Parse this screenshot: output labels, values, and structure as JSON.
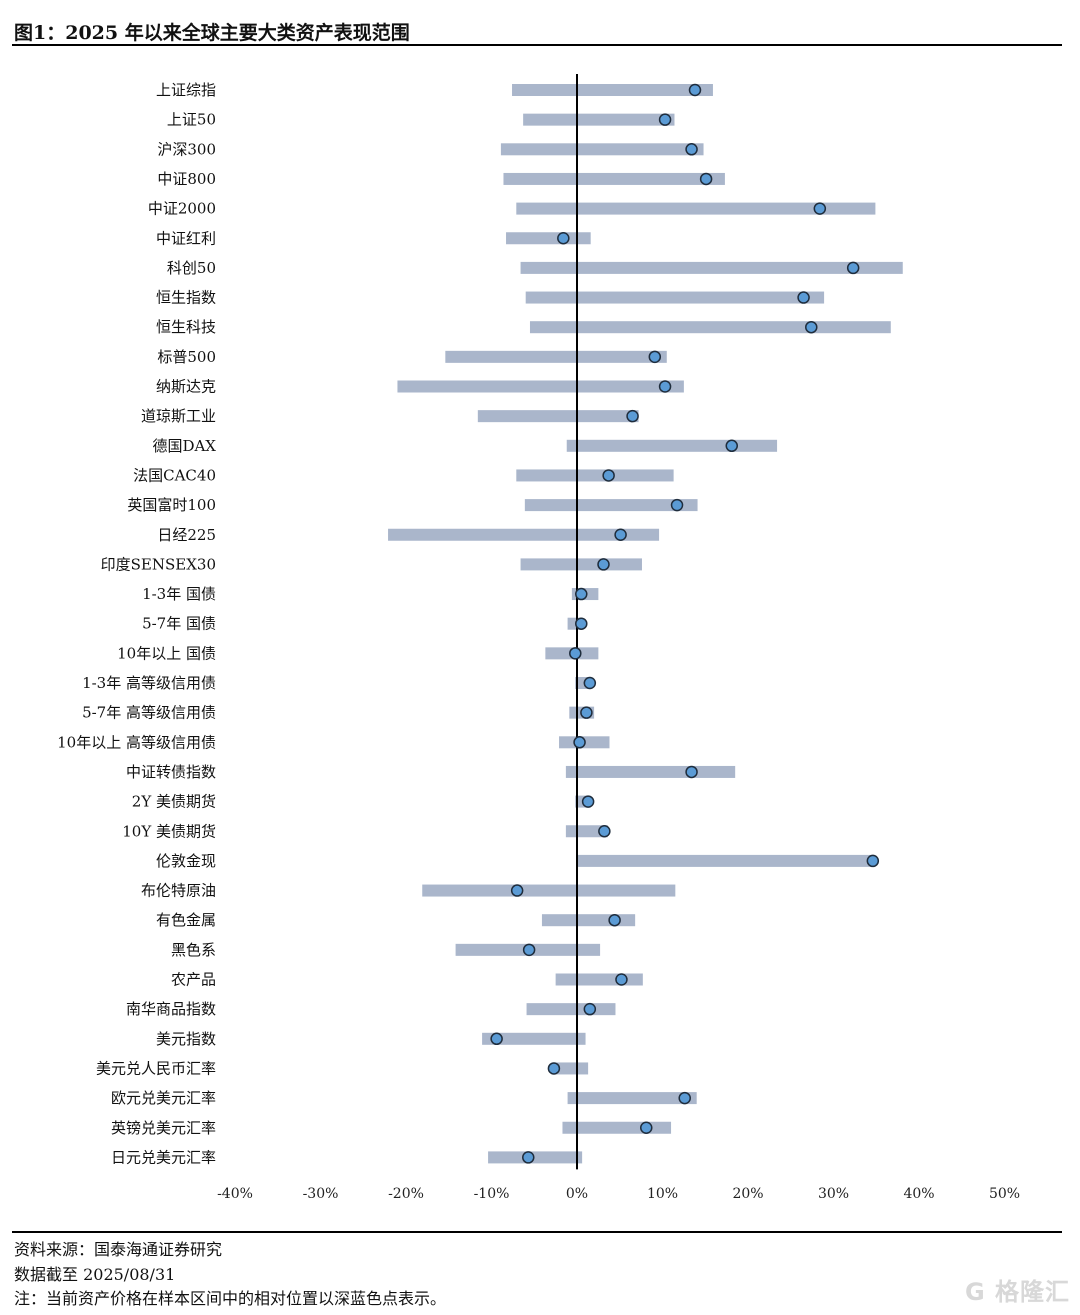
{
  "figure": {
    "title": "图1：2025 年以来全球主要大类资产表现范围",
    "source": "资料来源：国泰海通证券研究",
    "date_note": "数据截至 2025/08/31",
    "note": "注：当前资产价格在样本区间中的相对位置以深蓝色点表示。",
    "watermark": "格隆汇"
  },
  "colors": {
    "range_bar": "#aab6cb",
    "point_fill": "#5b9bd5",
    "point_stroke": "#1f2d3d",
    "zero_line": "#000000"
  },
  "chart_data": {
    "type": "range_dot",
    "xlim": [
      -40,
      50
    ],
    "x_ticks": [
      -40,
      -30,
      -20,
      -10,
      0,
      10,
      20,
      30,
      40,
      50
    ],
    "x_tick_labels": [
      "-40%",
      "-30%",
      "-20%",
      "-10%",
      "0%",
      "10%",
      "20%",
      "30%",
      "40%",
      "50%"
    ],
    "categories": [
      "上证综指",
      "上证50",
      "沪深300",
      "中证800",
      "中证2000",
      "中证红利",
      "科创50",
      "恒生指数",
      "恒生科技",
      "标普500",
      "纳斯达克",
      "道琼斯工业",
      "德国DAX",
      "法国CAC40",
      "英国富时100",
      "日经225",
      "印度SENSEX30",
      "1-3年 国债",
      "5-7年 国债",
      "10年以上 国债",
      "1-3年 高等级信用债",
      "5-7年 高等级信用债",
      "10年以上 高等级信用债",
      "中证转债指数",
      "2Y 美债期货",
      "10Y 美债期货",
      "伦敦金现",
      "布伦特原油",
      "有色金属",
      "黑色系",
      "农产品",
      "南华商品指数",
      "美元指数",
      "美元兑人民币汇率",
      "欧元兑美元汇率",
      "英镑兑美元汇率",
      "日元兑美元汇率"
    ],
    "range_min": [
      -7.6,
      -6.3,
      -8.9,
      -8.6,
      -7.1,
      -8.3,
      -6.6,
      -6.0,
      -5.5,
      -15.4,
      -21.0,
      -11.6,
      -1.2,
      -7.1,
      -6.1,
      -22.1,
      -6.6,
      -0.6,
      -1.1,
      -3.7,
      -0.2,
      -0.9,
      -2.1,
      -1.3,
      -0.2,
      -1.3,
      0.0,
      -18.1,
      -4.1,
      -14.2,
      -2.5,
      -5.9,
      -11.1,
      -3.0,
      -1.1,
      -1.7,
      -10.4
    ],
    "range_max": [
      15.9,
      11.4,
      14.8,
      17.3,
      34.9,
      1.6,
      38.1,
      28.9,
      36.7,
      10.5,
      12.5,
      7.2,
      23.4,
      11.3,
      14.1,
      9.6,
      7.6,
      2.5,
      0.5,
      2.5,
      1.3,
      2.0,
      3.8,
      18.5,
      1.6,
      3.6,
      34.6,
      11.5,
      6.8,
      2.7,
      7.7,
      4.5,
      1.0,
      1.3,
      14.0,
      11.0,
      0.6
    ],
    "current": [
      13.8,
      10.3,
      13.4,
      15.1,
      28.4,
      -1.6,
      32.3,
      26.5,
      27.4,
      9.1,
      10.3,
      6.5,
      18.1,
      3.7,
      11.7,
      5.1,
      3.1,
      0.5,
      0.5,
      -0.2,
      1.5,
      1.1,
      0.3,
      13.4,
      1.3,
      3.2,
      34.6,
      -7.0,
      4.4,
      -5.6,
      5.2,
      1.5,
      -9.4,
      -2.7,
      12.6,
      8.1,
      -5.7
    ]
  }
}
